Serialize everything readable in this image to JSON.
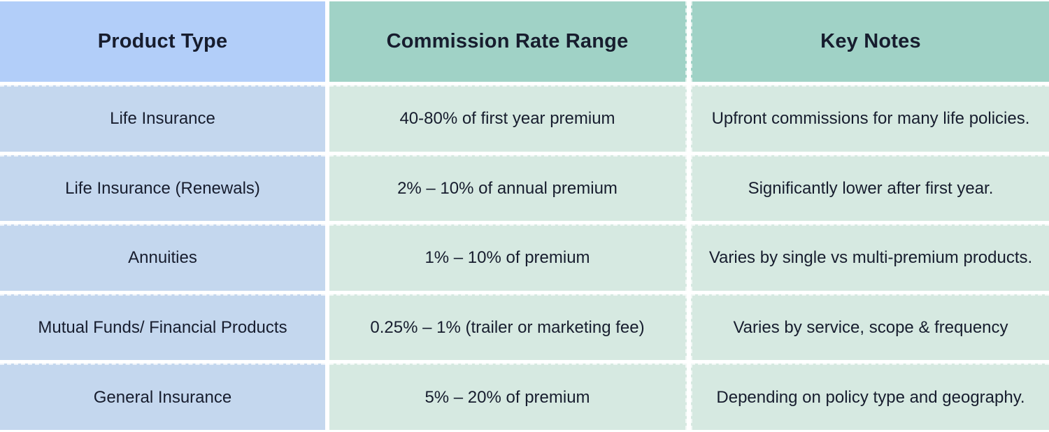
{
  "chart_data": {
    "type": "table",
    "columns": [
      "Product Type",
      "Commission Rate Range",
      "Key Notes"
    ],
    "rows": [
      [
        "Life Insurance",
        "40-80% of first year premium",
        "Upfront commissions for many life policies."
      ],
      [
        "Life Insurance (Renewals)",
        "2% – 10% of annual premium",
        "Significantly lower after first year."
      ],
      [
        "Annuities",
        "1% – 10% of premium",
        "Varies by single vs multi-premium products."
      ],
      [
        "Mutual Funds/ Financial Products",
        "0.25% – 1% (trailer or marketing fee)",
        "Varies by service, scope & frequency"
      ],
      [
        "General Insurance",
        "5% – 20% of premium",
        "Depending on policy type and geography."
      ]
    ],
    "layout": {
      "grid": "off",
      "legend": "none",
      "header_row": true
    }
  },
  "colors": {
    "header_product_bg": "#b2cef9",
    "header_teal_bg": "#a0d2c6",
    "row_product_bg": "#c4d7ee",
    "row_teal_bg": "#d6e9e1",
    "text": "#171d2e",
    "divider": "#ffffff"
  }
}
